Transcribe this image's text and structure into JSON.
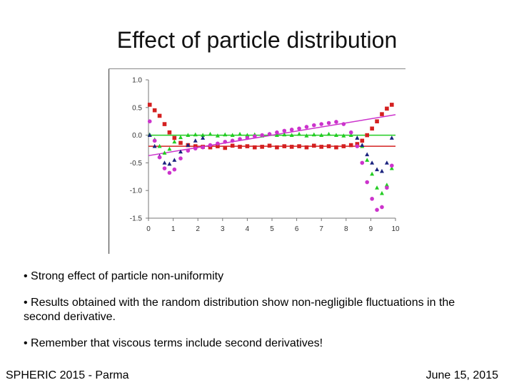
{
  "slide": {
    "title": "Effect of particle distribution",
    "bullets": [
      "• Strong effect of particle non-uniformity",
      "• Results obtained with the random distribution show non-negligible fluctuations in the second derivative.",
      "• Remember that viscous terms include second derivatives!"
    ],
    "footer_left": "SPHERIC 2015 - Parma",
    "footer_right": "June 15, 2015"
  },
  "chart_data": {
    "type": "scatter",
    "title": "",
    "xlabel": "",
    "ylabel": "",
    "xlim": [
      0,
      10
    ],
    "ylim": [
      -1.5,
      1.0
    ],
    "xticks": [
      0,
      1,
      2,
      3,
      4,
      5,
      6,
      7,
      8,
      9,
      10
    ],
    "yticks": [
      1.0,
      0.5,
      0.0,
      -0.5,
      -1.0,
      -1.5
    ],
    "ytick_labels": [
      "1.0",
      "0.5",
      "0.0",
      "-0.5",
      "-1.0",
      "-1.5"
    ],
    "grid": false,
    "reference_lines": [
      {
        "name": "red-reference",
        "color": "#d42020",
        "kind": "constant",
        "y": -0.2
      },
      {
        "name": "green-reference",
        "color": "#22cc22",
        "kind": "constant",
        "y": 0.0
      },
      {
        "name": "magenta-reference",
        "color": "#cc33cc",
        "kind": "linear",
        "x": [
          0,
          10
        ],
        "y": [
          -0.37,
          0.37
        ]
      }
    ],
    "series": [
      {
        "name": "red",
        "color": "#d42020",
        "marker": "square",
        "x": [
          0.05,
          0.25,
          0.45,
          0.65,
          0.85,
          1.05,
          1.3,
          1.6,
          1.9,
          2.2,
          2.5,
          2.8,
          3.1,
          3.4,
          3.7,
          4.0,
          4.3,
          4.6,
          4.9,
          5.2,
          5.5,
          5.8,
          6.1,
          6.4,
          6.7,
          7.0,
          7.3,
          7.6,
          7.9,
          8.2,
          8.45,
          8.65,
          8.85,
          9.05,
          9.25,
          9.45,
          9.65,
          9.85
        ],
        "y": [
          0.55,
          0.45,
          0.35,
          0.2,
          0.05,
          -0.05,
          -0.14,
          -0.18,
          -0.2,
          -0.21,
          -0.22,
          -0.2,
          -0.23,
          -0.19,
          -0.21,
          -0.2,
          -0.22,
          -0.21,
          -0.19,
          -0.22,
          -0.2,
          -0.21,
          -0.2,
          -0.22,
          -0.19,
          -0.21,
          -0.2,
          -0.22,
          -0.2,
          -0.18,
          -0.16,
          -0.1,
          0.0,
          0.12,
          0.25,
          0.38,
          0.48,
          0.55
        ]
      },
      {
        "name": "green",
        "color": "#22cc22",
        "marker": "triangle",
        "x": [
          0.05,
          0.25,
          0.45,
          0.65,
          0.85,
          1.05,
          1.3,
          1.6,
          1.9,
          2.2,
          2.5,
          2.8,
          3.1,
          3.4,
          3.7,
          4.0,
          4.3,
          4.6,
          4.9,
          5.2,
          5.5,
          5.8,
          6.1,
          6.4,
          6.7,
          7.0,
          7.3,
          7.6,
          7.9,
          8.2,
          8.45,
          8.65,
          8.85,
          9.05,
          9.25,
          9.45,
          9.65,
          9.85
        ],
        "y": [
          0.01,
          -0.08,
          -0.2,
          -0.32,
          -0.25,
          -0.12,
          -0.04,
          0.0,
          0.01,
          0.0,
          0.02,
          -0.01,
          0.01,
          0.0,
          0.02,
          0.0,
          0.01,
          -0.01,
          0.02,
          0.0,
          0.01,
          0.0,
          0.02,
          -0.01,
          0.01,
          0.0,
          0.02,
          0.0,
          -0.01,
          0.0,
          -0.05,
          -0.2,
          -0.45,
          -0.7,
          -0.95,
          -1.05,
          -0.9,
          -0.6
        ]
      },
      {
        "name": "navy",
        "color": "#1a237e",
        "marker": "triangle",
        "x": [
          0.05,
          0.25,
          0.45,
          0.65,
          0.85,
          1.05,
          1.3,
          1.6,
          1.9,
          2.2,
          8.45,
          8.65,
          8.85,
          9.05,
          9.25,
          9.45,
          9.65,
          9.85
        ],
        "y": [
          0.0,
          -0.2,
          -0.38,
          -0.5,
          -0.52,
          -0.45,
          -0.3,
          -0.18,
          -0.1,
          -0.05,
          -0.05,
          -0.18,
          -0.35,
          -0.5,
          -0.62,
          -0.65,
          -0.5,
          -0.05
        ]
      },
      {
        "name": "magenta",
        "color": "#cc33cc",
        "marker": "circle",
        "x": [
          0.05,
          0.25,
          0.45,
          0.65,
          0.85,
          1.05,
          1.3,
          1.6,
          1.9,
          2.2,
          2.5,
          2.8,
          3.1,
          3.4,
          3.7,
          4.0,
          4.3,
          4.6,
          4.9,
          5.2,
          5.5,
          5.8,
          6.1,
          6.4,
          6.7,
          7.0,
          7.3,
          7.6,
          7.9,
          8.2,
          8.45,
          8.65,
          8.85,
          9.05,
          9.25,
          9.45,
          9.65,
          9.85
        ],
        "y": [
          0.25,
          -0.1,
          -0.4,
          -0.6,
          -0.68,
          -0.62,
          -0.42,
          -0.28,
          -0.24,
          -0.22,
          -0.18,
          -0.15,
          -0.12,
          -0.1,
          -0.07,
          -0.05,
          -0.02,
          0.0,
          0.02,
          0.05,
          0.08,
          0.1,
          0.12,
          0.15,
          0.18,
          0.2,
          0.22,
          0.24,
          0.2,
          0.05,
          -0.2,
          -0.5,
          -0.85,
          -1.15,
          -1.35,
          -1.3,
          -0.95,
          -0.55
        ]
      }
    ]
  }
}
